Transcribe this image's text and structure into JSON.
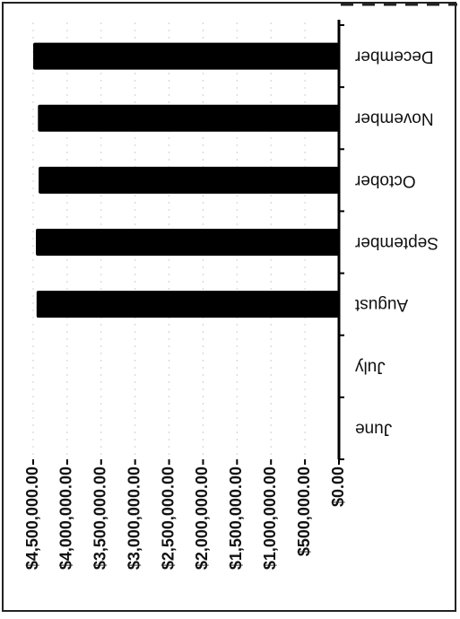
{
  "chart_data": {
    "type": "bar",
    "orientation": "horizontal",
    "categories": [
      "June",
      "July",
      "August",
      "September",
      "October",
      "November",
      "December"
    ],
    "values": [
      0,
      0,
      4450000,
      4460000,
      4420000,
      4430000,
      4500000
    ],
    "x_ticks": [
      "$0.00",
      "$500,000.00",
      "$1,000,000.00",
      "$1,500,000.00",
      "$2,000,000.00",
      "$2,500,000.00",
      "$3,000,000.00",
      "$3,500,000.00",
      "$4,000,000.00",
      "$4,500,000.00"
    ],
    "xlim": [
      0,
      4500000
    ],
    "grid": true,
    "legend": "none",
    "bar_color": "#000000",
    "rendering": "image flipped (rotated 180°)"
  }
}
